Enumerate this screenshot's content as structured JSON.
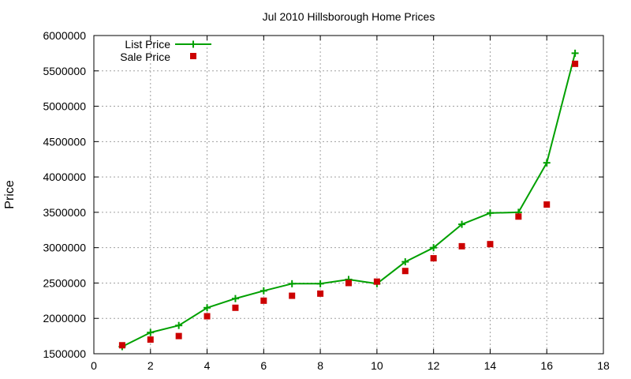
{
  "chart_data": {
    "type": "line",
    "title": "Jul 2010 Hillsborough Home Prices",
    "xlabel": "",
    "ylabel": "Price",
    "xlim": [
      0,
      18
    ],
    "ylim": [
      1500000,
      6000000
    ],
    "xticks": [
      0,
      2,
      4,
      6,
      8,
      10,
      12,
      14,
      16,
      18
    ],
    "yticks": [
      1500000,
      2000000,
      2500000,
      3000000,
      3500000,
      4000000,
      4500000,
      5000000,
      5500000,
      6000000
    ],
    "grid": true,
    "legend_position": "top-left",
    "x": [
      1,
      2,
      3,
      4,
      5,
      6,
      7,
      8,
      9,
      10,
      11,
      12,
      13,
      14,
      15,
      16,
      17
    ],
    "series": [
      {
        "name": "List Price",
        "style": "line-with-plus-markers",
        "color": "#00a000",
        "values": [
          1600000,
          1800000,
          1900000,
          2150000,
          2280000,
          2390000,
          2490000,
          2490000,
          2550000,
          2490000,
          2800000,
          3000000,
          3330000,
          3490000,
          3500000,
          4200000,
          5750000
        ]
      },
      {
        "name": "Sale Price",
        "style": "square-markers",
        "color": "#cc0000",
        "values": [
          1620000,
          1700000,
          1750000,
          2030000,
          2150000,
          2250000,
          2320000,
          2350000,
          2500000,
          2520000,
          2670000,
          2850000,
          3020000,
          3050000,
          3440000,
          3610000,
          5600000
        ]
      }
    ]
  }
}
